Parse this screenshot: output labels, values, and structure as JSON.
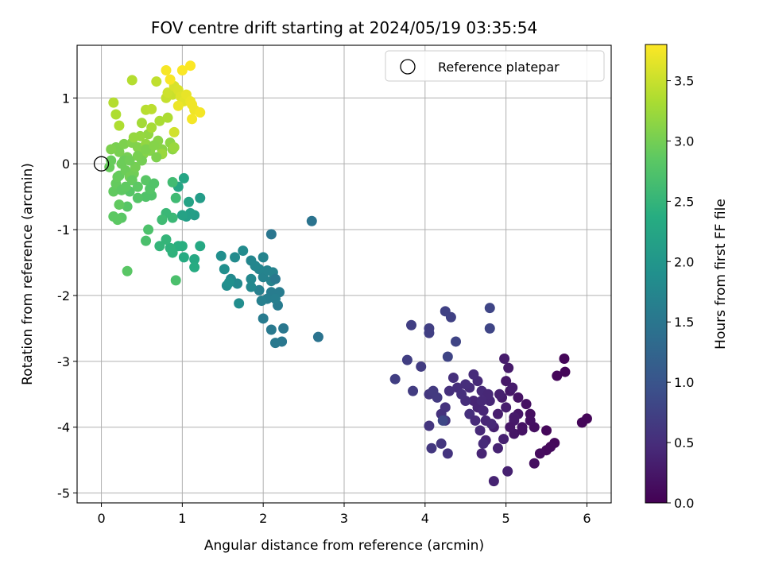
{
  "chart_data": {
    "type": "scatter",
    "title": "FOV centre drift starting at 2024/05/19 03:35:54",
    "xlabel": "Angular distance from reference (arcmin)",
    "ylabel": "Rotation from reference (arcmin)",
    "xlim": [
      -0.3,
      6.3
    ],
    "ylim": [
      -5.15,
      1.8
    ],
    "xticks": [
      0,
      1,
      2,
      3,
      4,
      5,
      6
    ],
    "yticks": [
      -5,
      -4,
      -3,
      -2,
      -1,
      0,
      1
    ],
    "grid": true,
    "legend": {
      "placement": "top-right",
      "entries": [
        "Reference platepar"
      ]
    },
    "reference_point": {
      "x": 0,
      "y": 0,
      "label": "Reference platepar"
    },
    "colorbar": {
      "label": "Hours from first FF file",
      "range": [
        0,
        3.8
      ],
      "ticks": [
        "0.0",
        "0.5",
        "1.0",
        "1.5",
        "2.0",
        "2.5",
        "3.0",
        "3.5"
      ],
      "colormap": "viridis"
    },
    "points": [
      [
        5.72,
        -2.96,
        0.05
      ],
      [
        5.73,
        -3.16,
        0.05
      ],
      [
        5.63,
        -3.22,
        0.06
      ],
      [
        6.0,
        -3.87,
        0.05
      ],
      [
        5.94,
        -3.93,
        0.06
      ],
      [
        5.5,
        -4.05,
        0.08
      ],
      [
        5.6,
        -4.24,
        0.08
      ],
      [
        5.55,
        -4.3,
        0.1
      ],
      [
        5.5,
        -4.35,
        0.1
      ],
      [
        5.42,
        -4.4,
        0.12
      ],
      [
        5.35,
        -4.55,
        0.15
      ],
      [
        5.3,
        -3.8,
        0.15
      ],
      [
        5.35,
        -4.0,
        0.15
      ],
      [
        5.25,
        -3.65,
        0.18
      ],
      [
        5.15,
        -3.55,
        0.2
      ],
      [
        5.2,
        -4.0,
        0.2
      ],
      [
        5.1,
        -4.1,
        0.22
      ],
      [
        5.15,
        -3.8,
        0.22
      ],
      [
        5.05,
        -3.45,
        0.25
      ],
      [
        5.0,
        -3.3,
        0.25
      ],
      [
        5.03,
        -3.1,
        0.28
      ],
      [
        4.98,
        -2.96,
        0.3
      ],
      [
        4.95,
        -3.55,
        0.3
      ],
      [
        4.9,
        -3.8,
        0.32
      ],
      [
        4.85,
        -4.0,
        0.35
      ],
      [
        4.97,
        -4.18,
        0.35
      ],
      [
        5.02,
        -4.67,
        0.35
      ],
      [
        4.85,
        -4.82,
        0.38
      ],
      [
        4.9,
        -4.32,
        0.38
      ],
      [
        4.75,
        -4.2,
        0.4
      ],
      [
        4.7,
        -4.4,
        0.4
      ],
      [
        4.75,
        -3.9,
        0.42
      ],
      [
        4.8,
        -3.6,
        0.42
      ],
      [
        4.7,
        -3.45,
        0.45
      ],
      [
        4.65,
        -3.3,
        0.45
      ],
      [
        4.6,
        -3.2,
        0.48
      ],
      [
        4.55,
        -3.4,
        0.48
      ],
      [
        4.5,
        -3.35,
        0.5
      ],
      [
        4.4,
        -3.4,
        0.5
      ],
      [
        4.35,
        -3.25,
        0.52
      ],
      [
        4.3,
        -3.45,
        0.52
      ],
      [
        4.25,
        -3.7,
        0.55
      ],
      [
        4.2,
        -3.8,
        0.55
      ],
      [
        4.25,
        -3.9,
        0.58
      ],
      [
        4.28,
        -4.4,
        0.58
      ],
      [
        4.2,
        -4.25,
        0.6
      ],
      [
        4.05,
        -3.98,
        0.6
      ],
      [
        4.08,
        -4.32,
        0.62
      ],
      [
        4.05,
        -3.5,
        0.62
      ],
      [
        4.1,
        -3.45,
        0.65
      ],
      [
        4.15,
        -3.55,
        0.65
      ],
      [
        3.95,
        -3.08,
        0.68
      ],
      [
        3.85,
        -3.45,
        0.68
      ],
      [
        3.78,
        -2.98,
        0.7
      ],
      [
        3.63,
        -3.27,
        0.7
      ],
      [
        3.83,
        -2.45,
        0.72
      ],
      [
        4.05,
        -2.5,
        0.72
      ],
      [
        4.05,
        -2.57,
        0.72
      ],
      [
        4.25,
        -2.24,
        0.75
      ],
      [
        4.32,
        -2.33,
        0.75
      ],
      [
        4.38,
        -2.7,
        0.78
      ],
      [
        4.28,
        -2.93,
        0.78
      ],
      [
        4.8,
        -2.19,
        0.8
      ],
      [
        4.8,
        -2.5,
        0.8
      ],
      [
        4.22,
        -3.9,
        0.82
      ],
      [
        4.6,
        -3.6,
        0.4
      ],
      [
        4.65,
        -3.7,
        0.4
      ],
      [
        4.72,
        -3.75,
        0.42
      ],
      [
        4.78,
        -3.5,
        0.43
      ],
      [
        4.82,
        -3.95,
        0.44
      ],
      [
        4.68,
        -4.05,
        0.45
      ],
      [
        4.72,
        -4.25,
        0.46
      ],
      [
        4.92,
        -3.5,
        0.34
      ],
      [
        5.0,
        -3.7,
        0.32
      ],
      [
        5.08,
        -3.4,
        0.3
      ],
      [
        5.1,
        -3.85,
        0.28
      ],
      [
        5.1,
        -3.9,
        0.26
      ],
      [
        5.05,
        -4.0,
        0.24
      ],
      [
        5.2,
        -4.05,
        0.2
      ],
      [
        5.3,
        -3.9,
        0.18
      ],
      [
        4.5,
        -3.6,
        0.5
      ],
      [
        4.55,
        -3.8,
        0.52
      ],
      [
        4.45,
        -3.5,
        0.53
      ],
      [
        4.62,
        -3.9,
        0.47
      ],
      [
        4.7,
        -3.6,
        0.44
      ],
      [
        2.6,
        -0.87,
        1.45
      ],
      [
        2.68,
        -2.63,
        1.45
      ],
      [
        2.1,
        -1.07,
        1.5
      ],
      [
        2.25,
        -2.5,
        1.52
      ],
      [
        2.23,
        -2.7,
        1.52
      ],
      [
        2.15,
        -2.72,
        1.55
      ],
      [
        2.1,
        -2.52,
        1.55
      ],
      [
        2.0,
        -2.35,
        1.58
      ],
      [
        2.18,
        -2.15,
        1.58
      ],
      [
        2.2,
        -1.95,
        1.6
      ],
      [
        2.1,
        -1.95,
        1.6
      ],
      [
        2.05,
        -2.05,
        1.62
      ],
      [
        2.15,
        -2.05,
        1.62
      ],
      [
        1.98,
        -2.08,
        1.65
      ],
      [
        1.95,
        -1.92,
        1.65
      ],
      [
        2.0,
        -1.72,
        1.68
      ],
      [
        2.1,
        -1.78,
        1.68
      ],
      [
        2.12,
        -1.65,
        1.7
      ],
      [
        2.05,
        -1.62,
        1.7
      ],
      [
        1.95,
        -1.6,
        1.72
      ],
      [
        2.0,
        -1.42,
        1.72
      ],
      [
        1.9,
        -1.55,
        1.75
      ],
      [
        1.85,
        -1.47,
        1.75
      ],
      [
        1.85,
        -1.75,
        1.78
      ],
      [
        1.85,
        -1.87,
        1.78
      ],
      [
        1.68,
        -1.82,
        1.8
      ],
      [
        1.6,
        -1.75,
        1.8
      ],
      [
        1.65,
        -1.42,
        1.82
      ],
      [
        1.75,
        -1.32,
        1.82
      ],
      [
        1.7,
        -2.12,
        1.85
      ],
      [
        1.55,
        -1.85,
        1.85
      ],
      [
        1.52,
        -1.6,
        1.88
      ],
      [
        1.48,
        -1.4,
        1.88
      ],
      [
        1.58,
        -1.8,
        1.9
      ],
      [
        2.15,
        -1.75,
        1.55
      ],
      [
        1.22,
        -0.52,
        2.1
      ],
      [
        1.15,
        -0.78,
        2.1
      ],
      [
        1.1,
        -0.75,
        2.15
      ],
      [
        1.05,
        -0.8,
        2.15
      ],
      [
        1.0,
        -0.78,
        2.2
      ],
      [
        1.08,
        -0.58,
        2.2
      ],
      [
        1.02,
        -0.22,
        2.25
      ],
      [
        0.95,
        -0.35,
        2.25
      ],
      [
        1.22,
        -1.25,
        2.3
      ],
      [
        1.15,
        -1.45,
        2.3
      ],
      [
        1.15,
        -1.57,
        2.35
      ],
      [
        1.02,
        -1.42,
        2.35
      ],
      [
        1.0,
        -1.25,
        2.4
      ],
      [
        0.95,
        -1.25,
        2.4
      ],
      [
        0.88,
        -1.35,
        2.45
      ],
      [
        0.85,
        -1.28,
        2.45
      ],
      [
        0.8,
        -1.15,
        2.5
      ],
      [
        0.72,
        -1.25,
        2.5
      ],
      [
        0.88,
        -0.82,
        2.55
      ],
      [
        0.8,
        -0.75,
        2.55
      ],
      [
        0.75,
        -0.85,
        2.6
      ],
      [
        0.92,
        -0.52,
        2.6
      ],
      [
        0.88,
        -0.28,
        2.62
      ],
      [
        0.92,
        -1.77,
        2.7
      ],
      [
        0.55,
        -1.17,
        2.7
      ],
      [
        0.58,
        -1.0,
        2.72
      ],
      [
        0.62,
        -0.48,
        2.75
      ],
      [
        0.55,
        -0.5,
        2.75
      ],
      [
        0.45,
        -0.52,
        2.78
      ],
      [
        0.35,
        -0.42,
        2.8
      ],
      [
        0.32,
        -0.65,
        2.8
      ],
      [
        0.32,
        -1.63,
        2.82
      ],
      [
        0.25,
        -0.82,
        2.82
      ],
      [
        0.2,
        -0.85,
        2.85
      ],
      [
        0.15,
        -0.8,
        2.85
      ],
      [
        0.22,
        -0.62,
        2.88
      ],
      [
        0.15,
        -0.42,
        2.88
      ],
      [
        0.18,
        -0.3,
        2.9
      ],
      [
        0.22,
        -0.18,
        2.9
      ],
      [
        0.1,
        -0.05,
        2.92
      ],
      [
        0.12,
        0.05,
        2.92
      ],
      [
        0.25,
        0.0,
        2.95
      ],
      [
        0.3,
        -0.1,
        2.95
      ],
      [
        0.35,
        -0.2,
        2.98
      ],
      [
        0.4,
        -0.15,
        2.98
      ],
      [
        0.42,
        -0.05,
        3.0
      ],
      [
        0.32,
        0.1,
        3.0
      ],
      [
        0.22,
        0.18,
        3.02
      ],
      [
        0.18,
        0.25,
        3.02
      ],
      [
        0.12,
        0.22,
        3.05
      ],
      [
        0.28,
        0.3,
        3.05
      ],
      [
        0.38,
        0.32,
        3.08
      ],
      [
        0.45,
        0.25,
        3.08
      ],
      [
        0.52,
        0.15,
        3.1
      ],
      [
        0.6,
        0.2,
        3.1
      ],
      [
        0.7,
        0.35,
        3.12
      ],
      [
        0.75,
        0.22,
        3.12
      ],
      [
        0.85,
        0.32,
        3.15
      ],
      [
        0.88,
        0.22,
        3.15
      ],
      [
        0.55,
        0.3,
        3.18
      ],
      [
        0.58,
        0.45,
        3.18
      ],
      [
        0.48,
        0.42,
        3.2
      ],
      [
        0.4,
        0.4,
        3.2
      ],
      [
        0.75,
        0.15,
        3.22
      ],
      [
        0.9,
        0.25,
        3.22
      ],
      [
        0.5,
        0.62,
        3.28
      ],
      [
        0.62,
        0.55,
        3.3
      ],
      [
        0.72,
        0.65,
        3.32
      ],
      [
        0.82,
        0.7,
        3.34
      ],
      [
        0.18,
        0.75,
        3.35
      ],
      [
        0.22,
        0.58,
        3.35
      ],
      [
        0.15,
        0.93,
        3.38
      ],
      [
        0.38,
        1.27,
        3.38
      ],
      [
        0.55,
        0.82,
        3.4
      ],
      [
        0.62,
        0.83,
        3.42
      ],
      [
        0.68,
        1.25,
        3.45
      ],
      [
        0.8,
        1.0,
        3.48
      ],
      [
        0.88,
        1.05,
        3.5
      ],
      [
        0.82,
        1.08,
        3.52
      ],
      [
        0.9,
        0.48,
        3.55
      ],
      [
        0.9,
        1.18,
        3.58
      ],
      [
        0.95,
        1.12,
        3.6
      ],
      [
        0.98,
        1.02,
        3.62
      ],
      [
        1.02,
        0.95,
        3.65
      ],
      [
        1.05,
        1.05,
        3.68
      ],
      [
        1.1,
        0.95,
        3.7
      ],
      [
        1.12,
        0.9,
        3.72
      ],
      [
        1.15,
        0.82,
        3.72
      ],
      [
        1.22,
        0.78,
        3.75
      ],
      [
        1.12,
        0.68,
        3.75
      ],
      [
        0.8,
        1.42,
        3.76
      ],
      [
        0.85,
        1.28,
        3.77
      ],
      [
        1.0,
        1.42,
        3.78
      ],
      [
        1.1,
        1.49,
        3.79
      ],
      [
        0.95,
        0.88,
        3.7
      ],
      [
        0.28,
        0.05,
        2.95
      ],
      [
        0.35,
        0.05,
        2.97
      ],
      [
        0.38,
        -0.25,
        2.9
      ],
      [
        0.45,
        -0.35,
        2.85
      ],
      [
        0.55,
        -0.25,
        2.82
      ],
      [
        0.6,
        -0.38,
        2.78
      ],
      [
        0.65,
        -0.3,
        2.76
      ],
      [
        0.25,
        -0.4,
        2.86
      ],
      [
        0.3,
        -0.35,
        2.87
      ],
      [
        0.2,
        -0.2,
        2.91
      ],
      [
        0.5,
        0.05,
        3.0
      ],
      [
        0.45,
        0.12,
        3.02
      ],
      [
        0.55,
        0.22,
        3.06
      ],
      [
        0.65,
        0.28,
        3.1
      ],
      [
        0.68,
        0.1,
        3.06
      ]
    ]
  }
}
